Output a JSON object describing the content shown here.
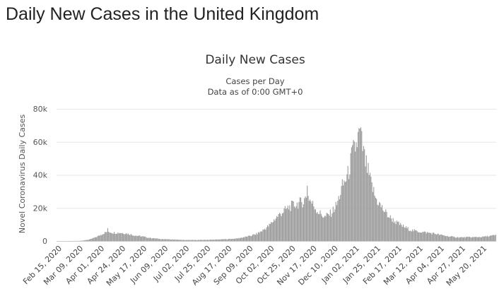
{
  "page": {
    "heading": "Daily New Cases in the United Kingdom"
  },
  "chart_data": {
    "type": "bar",
    "title": "Daily New Cases",
    "subtitle_line1": "Cases per Day",
    "subtitle_line2": "Data as of 0:00 GMT+0",
    "ylabel": "Novel Coronavirus Daily Cases",
    "xlabel": "",
    "ylim": [
      0,
      80000
    ],
    "y_ticks": [
      0,
      20000,
      40000,
      60000,
      80000
    ],
    "y_tick_labels": [
      "0",
      "20k",
      "40k",
      "60k",
      "80k"
    ],
    "x_range": [
      "2020-02-15",
      "2021-06-04"
    ],
    "x_tick_labels": [
      "Feb 15, 2020",
      "Mar 09, 2020",
      "Apr 01, 2020",
      "Apr 24, 2020",
      "May 17, 2020",
      "Jun 09, 2020",
      "Jul 02, 2020",
      "Jul 25, 2020",
      "Aug 17, 2020",
      "Sep 09, 2020",
      "Oct 02, 2020",
      "Oct 25, 2020",
      "Nov 17, 2020",
      "Dec 10, 2020",
      "Jan 02, 2021",
      "Jan 25, 2021",
      "Feb 17, 2021",
      "Mar 12, 2021",
      "Apr 04, 2021",
      "Apr 27, 2021",
      "May 20, 2021"
    ],
    "grid": true,
    "legend": "none",
    "bar_color": "#999999",
    "series_shape_note": "approximate daily values read from the bar heights",
    "keyframes": [
      [
        "2020-02-15",
        0
      ],
      [
        "2020-03-01",
        20
      ],
      [
        "2020-03-09",
        60
      ],
      [
        "2020-03-15",
        300
      ],
      [
        "2020-03-22",
        1000
      ],
      [
        "2020-03-29",
        2500
      ],
      [
        "2020-04-05",
        4500
      ],
      [
        "2020-04-10",
        5800
      ],
      [
        "2020-04-16",
        5000
      ],
      [
        "2020-04-24",
        5000
      ],
      [
        "2020-05-01",
        4500
      ],
      [
        "2020-05-10",
        3300
      ],
      [
        "2020-05-17",
        2800
      ],
      [
        "2020-05-24",
        2000
      ],
      [
        "2020-06-01",
        1500
      ],
      [
        "2020-06-09",
        1100
      ],
      [
        "2020-06-20",
        900
      ],
      [
        "2020-07-02",
        600
      ],
      [
        "2020-07-15",
        600
      ],
      [
        "2020-07-25",
        700
      ],
      [
        "2020-08-05",
        850
      ],
      [
        "2020-08-17",
        1100
      ],
      [
        "2020-08-28",
        1500
      ],
      [
        "2020-09-09",
        2800
      ],
      [
        "2020-09-18",
        4200
      ],
      [
        "2020-09-25",
        6500
      ],
      [
        "2020-10-02",
        9500
      ],
      [
        "2020-10-09",
        14000
      ],
      [
        "2020-10-16",
        17500
      ],
      [
        "2020-10-25",
        21000
      ],
      [
        "2020-11-01",
        22500
      ],
      [
        "2020-11-08",
        24000
      ],
      [
        "2020-11-12",
        28000
      ],
      [
        "2020-11-17",
        23000
      ],
      [
        "2020-11-24",
        17500
      ],
      [
        "2020-12-01",
        14500
      ],
      [
        "2020-12-08",
        17000
      ],
      [
        "2020-12-14",
        22000
      ],
      [
        "2020-12-20",
        33000
      ],
      [
        "2020-12-26",
        40000
      ],
      [
        "2020-12-31",
        53000
      ],
      [
        "2021-01-04",
        58000
      ],
      [
        "2021-01-08",
        66000
      ],
      [
        "2021-01-13",
        50000
      ],
      [
        "2021-01-19",
        37000
      ],
      [
        "2021-01-25",
        26000
      ],
      [
        "2021-02-01",
        20000
      ],
      [
        "2021-02-08",
        15000
      ],
      [
        "2021-02-17",
        11000
      ],
      [
        "2021-02-25",
        8500
      ],
      [
        "2021-03-05",
        6500
      ],
      [
        "2021-03-12",
        5800
      ],
      [
        "2021-03-20",
        5200
      ],
      [
        "2021-03-30",
        4500
      ],
      [
        "2021-04-04",
        3800
      ],
      [
        "2021-04-12",
        3000
      ],
      [
        "2021-04-20",
        2400
      ],
      [
        "2021-04-27",
        2200
      ],
      [
        "2021-05-05",
        2300
      ],
      [
        "2021-05-12",
        2300
      ],
      [
        "2021-05-20",
        2500
      ],
      [
        "2021-05-27",
        2900
      ],
      [
        "2021-06-04",
        3500
      ]
    ],
    "highlights": [
      [
        "2020-04-10",
        7800
      ],
      [
        "2020-11-12",
        33500
      ],
      [
        "2021-01-08",
        68000
      ]
    ]
  }
}
